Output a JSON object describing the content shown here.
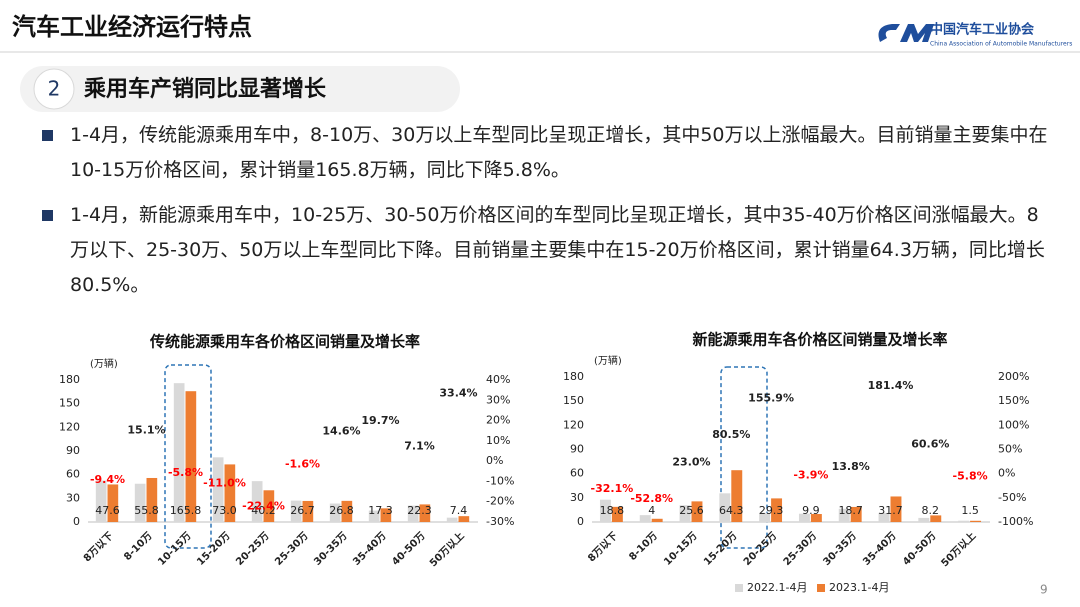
{
  "header": {
    "title": "汽车工业经济运行特点",
    "org_name": "中国汽车工业协会",
    "org_english": "China Association of Automobile Manufacturers"
  },
  "section": {
    "number": "2",
    "title": "乘用车产销同比显著增长"
  },
  "bullets": [
    "1-4月，传统能源乘用车中，8-10万、30万以上车型同比呈现正增长，其中50万以上涨幅最大。目前销量主要集中在10-15万价格区间，累计销量165.8万辆，同比下降5.8%。",
    "1-4月，新能源乘用车中，10-25万、30-50万价格区间的车型同比呈现正增长，其中35-40万价格区间涨幅最大。8万以下、25-30万、50万以上车型同比下降。目前销量主要集中在15-20万价格区间，累计销量64.3万辆，同比增长80.5%。"
  ],
  "page_number": "9",
  "chart_data": [
    {
      "type": "bar",
      "title": "传统能源乘用车各价格区间销量及增长率",
      "y_unit": "(万辆)",
      "categories": [
        "8万以下",
        "8-10万",
        "10-15万",
        "15-20万",
        "20-25万",
        "25-30万",
        "30-35万",
        "35-40万",
        "40-50万",
        "50万以上"
      ],
      "series": [
        {
          "color": "#d9d9d9",
          "values": [
            52.5,
            48.5,
            176.0,
            82.0,
            51.8,
            27.1,
            23.4,
            14.5,
            20.8,
            5.5
          ]
        },
        {
          "color": "#ed7d31",
          "values": [
            47.6,
            55.8,
            165.8,
            73.0,
            40.2,
            26.7,
            26.8,
            17.3,
            22.3,
            7.4
          ],
          "value_labels": [
            "47.6",
            "55.8",
            "165.8",
            "73.0",
            "40.2",
            "26.7",
            "26.8",
            "17.3",
            "22.3",
            "7.4"
          ]
        }
      ],
      "growth": {
        "axis": "y2",
        "values": [
          -9.4,
          15.1,
          -5.8,
          -11.0,
          -22.4,
          -1.6,
          14.6,
          19.7,
          7.1,
          33.4
        ],
        "value_labels": [
          "-9.4%",
          "15.1%",
          "-5.8%",
          "-11.0%",
          "-22.4%",
          "-1.6%",
          "14.6%",
          "19.7%",
          "7.1%",
          "33.4%"
        ],
        "positive_color": "#222222",
        "negative_color": "#ff0000"
      },
      "ylim": [
        0,
        180
      ],
      "yticks": [
        0,
        30,
        60,
        90,
        120,
        150,
        180
      ],
      "y2lim": [
        -30,
        40
      ],
      "y2ticks": [
        {
          "value": -30,
          "label": "-30%"
        },
        {
          "value": -20,
          "label": "-20%"
        },
        {
          "value": -10,
          "label": "-10%"
        },
        {
          "value": 0,
          "label": "0%"
        },
        {
          "value": 10,
          "label": "10%"
        },
        {
          "value": 20,
          "label": "20%"
        },
        {
          "value": 30,
          "label": "30%"
        },
        {
          "value": 40,
          "label": "40%"
        }
      ]
    },
    {
      "type": "bar",
      "title": "新能源乘用车各价格区间销量及增长率",
      "y_unit": "(万辆)",
      "categories": [
        "8万以下",
        "8-10万",
        "10-15万",
        "15-20万",
        "20-25万",
        "25-30万",
        "30-35万",
        "35-40万",
        "40-50万",
        "50万以上"
      ],
      "series": [
        {
          "name": "2022.1-4月",
          "color": "#d9d9d9",
          "values": [
            27.7,
            8.5,
            20.8,
            35.6,
            11.5,
            10.3,
            16.4,
            11.3,
            5.1,
            1.6
          ]
        },
        {
          "name": "2023.1-4月",
          "color": "#ed7d31",
          "values": [
            18.8,
            4,
            25.6,
            64.3,
            29.3,
            9.9,
            18.7,
            31.7,
            8.2,
            1.5
          ],
          "value_labels": [
            "18.8",
            "4",
            "25.6",
            "64.3",
            "29.3",
            "9.9",
            "18.7",
            "31.7",
            "8.2",
            "1.5"
          ]
        }
      ],
      "growth": {
        "axis": "y2",
        "values": [
          -32.1,
          -52.8,
          23.0,
          80.5,
          155.9,
          -3.9,
          13.8,
          181.4,
          60.6,
          -5.8
        ],
        "value_labels": [
          "-32.1%",
          "-52.8%",
          "23.0%",
          "80.5%",
          "155.9%",
          "-3.9%",
          "13.8%",
          "181.4%",
          "60.6%",
          "-5.8%"
        ],
        "positive_color": "#222222",
        "negative_color": "#ff0000"
      },
      "ylim": [
        0,
        180
      ],
      "yticks": [
        0,
        30,
        60,
        90,
        120,
        150,
        180
      ],
      "y2lim": [
        -100,
        200
      ],
      "y2ticks": [
        {
          "value": -100,
          "label": "-100%"
        },
        {
          "value": -50,
          "label": "-50%"
        },
        {
          "value": 0,
          "label": "0%"
        },
        {
          "value": 50,
          "label": "50%"
        },
        {
          "value": 100,
          "label": "100%"
        },
        {
          "value": 150,
          "label": "150%"
        },
        {
          "value": 200,
          "label": "200%"
        }
      ]
    }
  ]
}
